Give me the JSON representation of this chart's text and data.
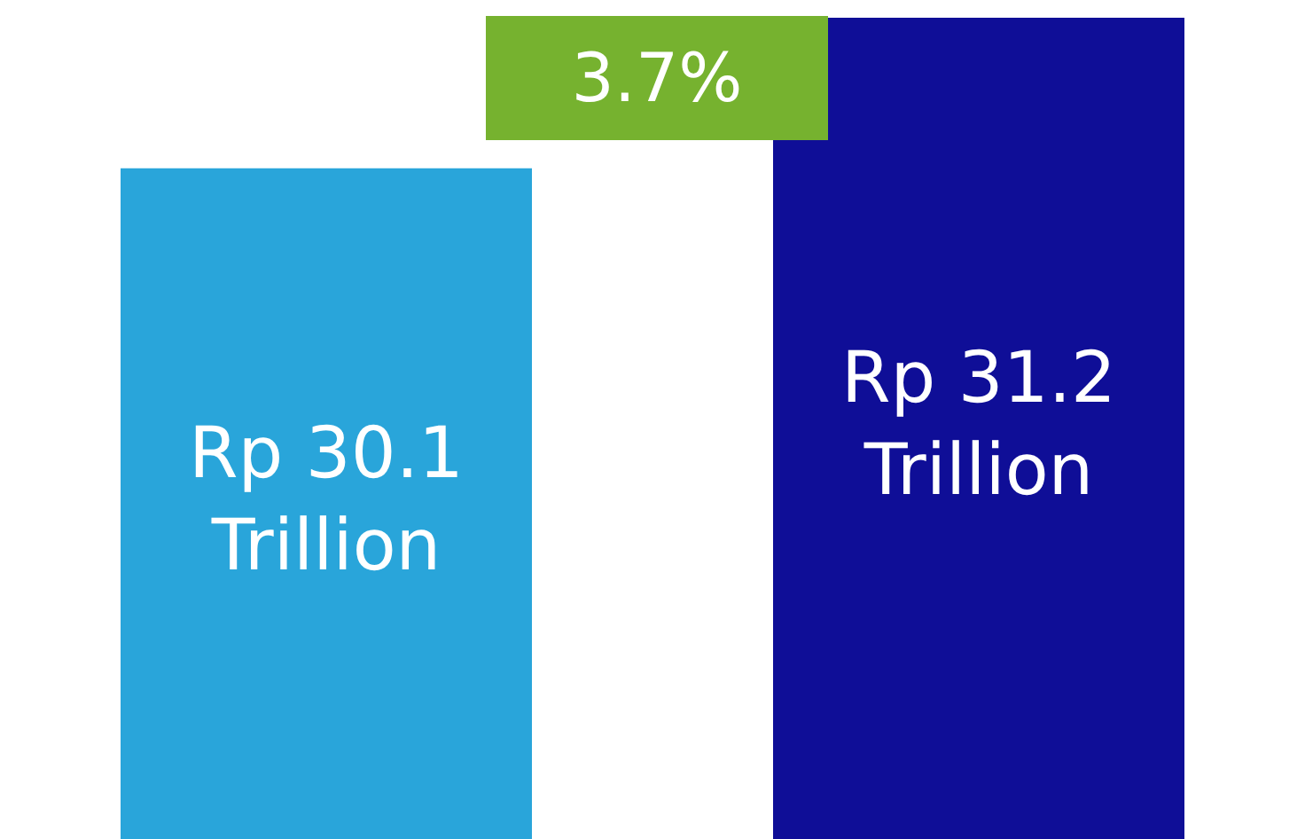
{
  "chart_data": {
    "type": "bar",
    "categories": [
      null,
      null
    ],
    "values": [
      30.1,
      31.2
    ],
    "colors": [
      "#29a5da",
      "#0f0e97"
    ],
    "value_labels": [
      "Rp 30.1 Trillion",
      "Rp 31.2 Trillion"
    ],
    "ylim": [
      25.2,
      31.33
    ],
    "annotations": [
      "3.7%"
    ]
  }
}
